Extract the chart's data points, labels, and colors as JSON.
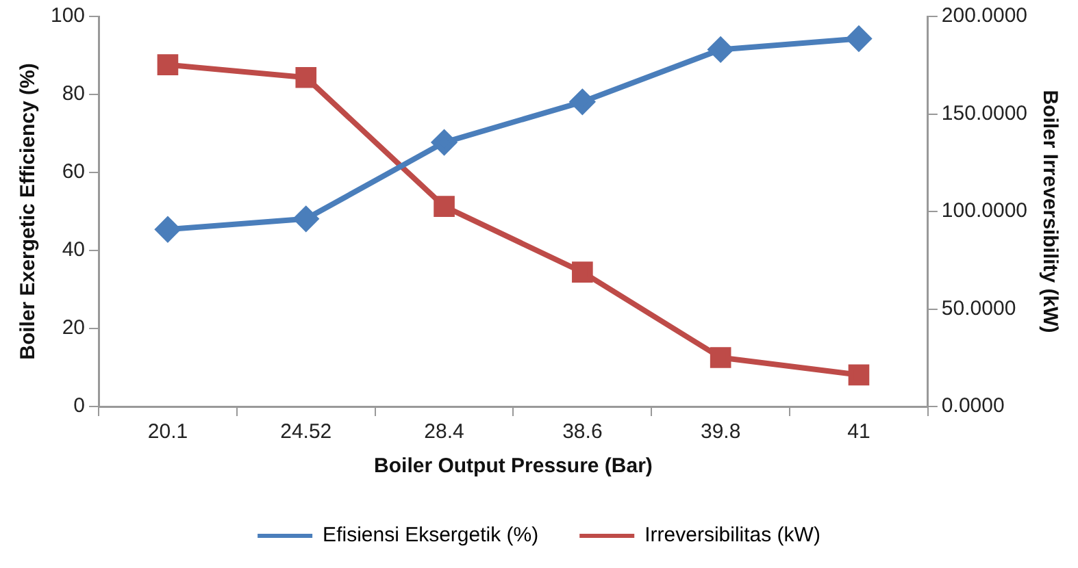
{
  "chart_data": {
    "type": "line",
    "xlabel": "Boiler Output Pressure (Bar)",
    "ylabel": "Boiler Exergetic Efficiency (%)",
    "y2label": "Boiler Irreversibility (kW)",
    "categories": [
      "20.1",
      "24.52",
      "28.4",
      "38.6",
      "39.8",
      "41"
    ],
    "series": [
      {
        "name": "Efisiensi Eksergetik (%)",
        "color": "#4a7ebb",
        "marker": "diamond",
        "values": [
          45.4,
          48.1,
          67.7,
          78.1,
          91.5,
          94.3
        ]
      },
      {
        "name": "Irreversibilitas (kW)",
        "color": "#be4b48",
        "marker": "square",
        "axis": "y2",
        "values": [
          175.2,
          168.7,
          102.6,
          68.9,
          25.1,
          16.2
        ]
      }
    ],
    "ylim": [
      0,
      100
    ],
    "yticks": [
      0,
      20,
      40,
      60,
      80,
      100
    ],
    "y2lim": [
      0,
      200
    ],
    "y2ticks": [
      {
        "value": 0,
        "label": "0.0000"
      },
      {
        "value": 50,
        "label": "50.0000"
      },
      {
        "value": 100,
        "label": "100.0000"
      },
      {
        "value": 150,
        "label": "150.0000"
      },
      {
        "value": 200,
        "label": "200.0000"
      }
    ],
    "grid": false,
    "legend": "bottom",
    "line_style": "solid"
  }
}
